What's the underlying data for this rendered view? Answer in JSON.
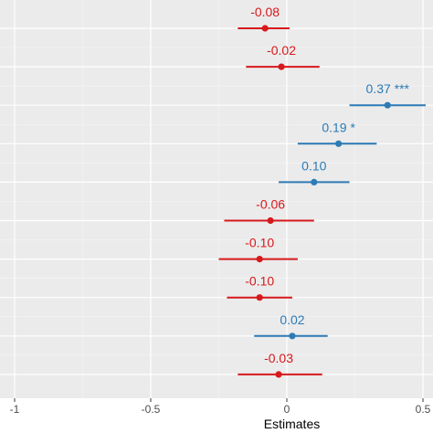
{
  "chart_data": {
    "type": "scatter",
    "subtype": "forest-plot",
    "xlabel": "Estimates",
    "ylabel": "",
    "xlim": [
      -1,
      0.5
    ],
    "x_ticks": [
      {
        "value": -1,
        "label": "-1"
      },
      {
        "value": -0.5,
        "label": "-0.5"
      },
      {
        "value": 0,
        "label": "0"
      },
      {
        "value": 0.5,
        "label": "0.5"
      }
    ],
    "grid": true,
    "colors": {
      "negative": "#d7191c",
      "positive": "#2c7bb6",
      "panel": "#ebebeb",
      "grid_major": "#ffffff",
      "grid_minor": "#f5f5f5"
    },
    "rows": [
      {
        "estimate": -0.08,
        "lower": -0.18,
        "upper": 0.01,
        "label": "-0.08"
      },
      {
        "estimate": -0.02,
        "lower": -0.15,
        "upper": 0.12,
        "label": "-0.02"
      },
      {
        "estimate": 0.37,
        "lower": 0.23,
        "upper": 0.51,
        "label": "0.37 ***"
      },
      {
        "estimate": 0.19,
        "lower": 0.04,
        "upper": 0.33,
        "label": "0.19 *"
      },
      {
        "estimate": 0.1,
        "lower": -0.03,
        "upper": 0.23,
        "label": "0.10"
      },
      {
        "estimate": -0.06,
        "lower": -0.23,
        "upper": 0.1,
        "label": "-0.06"
      },
      {
        "estimate": -0.1,
        "lower": -0.25,
        "upper": 0.04,
        "label": "-0.10"
      },
      {
        "estimate": -0.1,
        "lower": -0.22,
        "upper": 0.02,
        "label": "-0.10"
      },
      {
        "estimate": 0.02,
        "lower": -0.12,
        "upper": 0.15,
        "label": "0.02"
      },
      {
        "estimate": -0.03,
        "lower": -0.18,
        "upper": 0.13,
        "label": "-0.03"
      }
    ]
  }
}
